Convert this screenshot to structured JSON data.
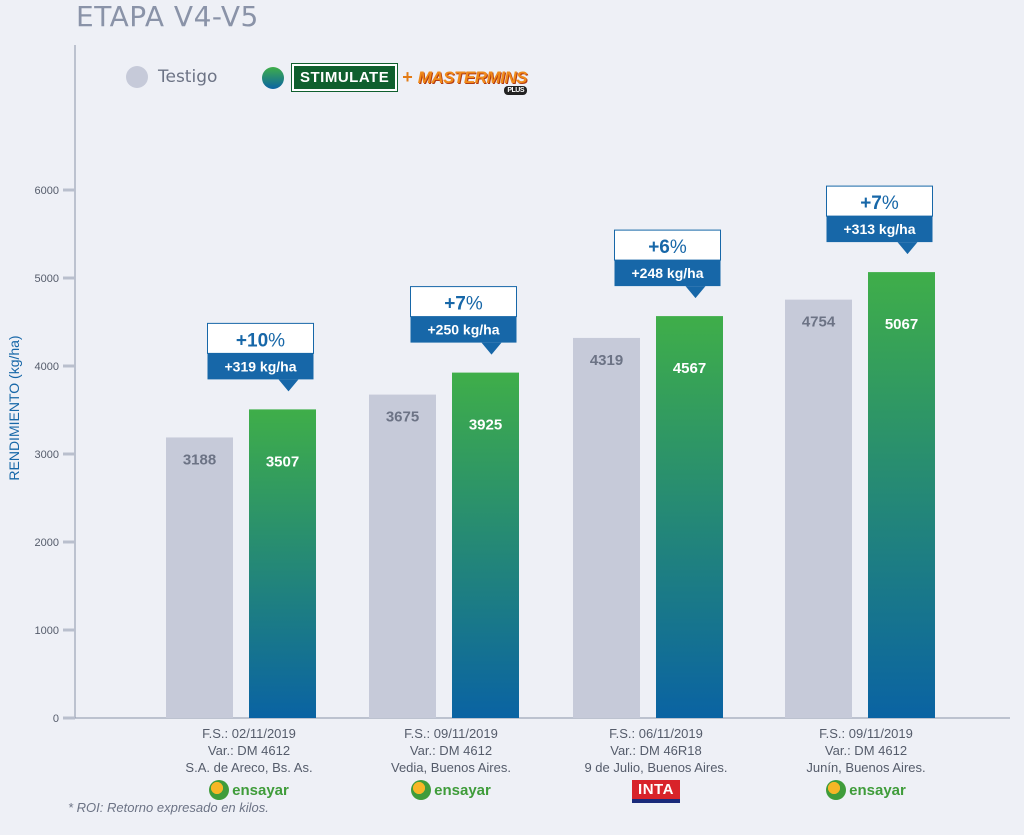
{
  "page": {
    "title": "ETAPA V4-V5",
    "footnote": "* ROI: Retorno expresado en kilos."
  },
  "legend": {
    "control_label": "Testigo",
    "brand1": "STIMULATE",
    "plus": "+",
    "brand2": "MASTERMINS",
    "brand2_sub": "PLUS"
  },
  "colors": {
    "control": "#c6cad9",
    "treat_top": "#3fae49",
    "treat_bottom": "#0a63a3",
    "axis": "#8a93a8",
    "callout_fill": "#1767a8",
    "callout_border": "#1767a8"
  },
  "chart_data": {
    "type": "bar",
    "ylabel": "RENDIMIENTO (kg/ha)",
    "xlabel": "",
    "ylim": [
      0,
      6000
    ],
    "yticks": [
      0,
      1000,
      2000,
      3000,
      4000,
      5000,
      6000
    ],
    "grid": false,
    "legend_position": "top-left",
    "series": [
      {
        "name": "Testigo",
        "values": [
          3188,
          3675,
          4319,
          4754
        ]
      },
      {
        "name": "STIMULATE + MASTERMINS PLUS",
        "values": [
          3507,
          3925,
          4567,
          5067
        ]
      }
    ],
    "sites": [
      {
        "line1": "F.S.: 02/11/2019",
        "line2": "Var.: DM 4612",
        "line3": "S.A. de Areco, Bs. As.",
        "logo": "ensayar",
        "pct": "+10%",
        "pct_num": "+10",
        "pct_sym": "%",
        "diff": "+319 kg/ha"
      },
      {
        "line1": "F.S.: 09/11/2019",
        "line2": "Var.: DM 4612",
        "line3": "Vedia, Buenos Aires.",
        "logo": "ensayar",
        "pct": "+7%",
        "pct_num": "+7",
        "pct_sym": "%",
        "diff": "+250 kg/ha"
      },
      {
        "line1": "F.S.: 06/11/2019",
        "line2": "Var.: DM 46R18",
        "line3": "9 de Julio, Buenos Aires.",
        "logo": "INTA",
        "pct": "+6%",
        "pct_num": "+6",
        "pct_sym": "%",
        "diff": "+248 kg/ha"
      },
      {
        "line1": "F.S.: 09/11/2019",
        "line2": "Var.: DM 4612",
        "line3": "Junín, Buenos Aires.",
        "logo": "ensayar",
        "pct": "+7%",
        "pct_num": "+7",
        "pct_sym": "%",
        "diff": "+313 kg/ha"
      }
    ]
  },
  "logos": {
    "ensayar": "ensayar",
    "inta": "INTA"
  }
}
